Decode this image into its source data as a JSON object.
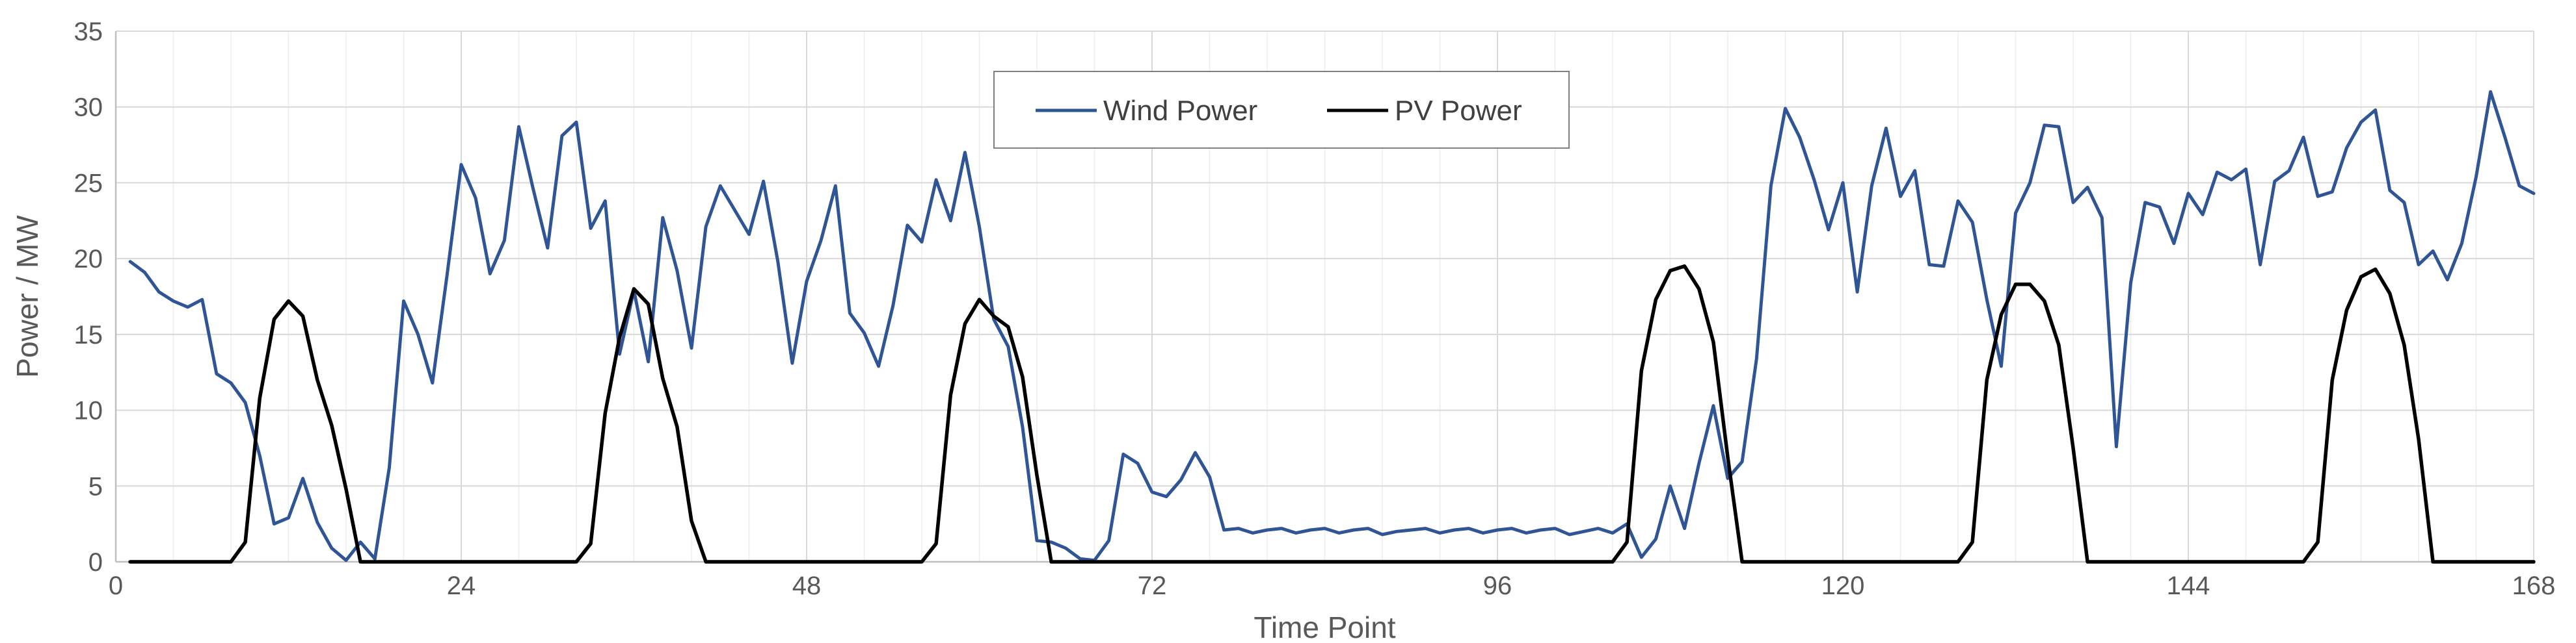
{
  "chart_data": {
    "type": "line",
    "title": "",
    "xlabel": "Time Point",
    "ylabel": "Power / MW",
    "xlim": [
      0,
      168
    ],
    "ylim": [
      0,
      35
    ],
    "x_ticks": [
      0,
      24,
      48,
      72,
      96,
      120,
      144,
      168
    ],
    "y_ticks": [
      0,
      5,
      10,
      15,
      20,
      25,
      30,
      35
    ],
    "grid": true,
    "legend_position": "top-center",
    "series": [
      {
        "name": "Wind Power",
        "color": "#2F5597",
        "x": [
          1,
          2,
          3,
          4,
          5,
          6,
          7,
          8,
          9,
          10,
          11,
          12,
          13,
          14,
          15,
          16,
          17,
          18,
          19,
          20,
          21,
          22,
          23,
          24,
          25,
          26,
          27,
          28,
          29,
          30,
          31,
          32,
          33,
          34,
          35,
          36,
          37,
          38,
          39,
          40,
          41,
          42,
          43,
          44,
          45,
          46,
          47,
          48,
          49,
          50,
          51,
          52,
          53,
          54,
          55,
          56,
          57,
          58,
          59,
          60,
          61,
          62,
          63,
          64,
          65,
          66,
          67,
          68,
          69,
          70,
          71,
          72,
          73,
          74,
          75,
          76,
          77,
          78,
          79,
          80,
          81,
          82,
          83,
          84,
          85,
          86,
          87,
          88,
          89,
          90,
          91,
          92,
          93,
          94,
          95,
          96,
          97,
          98,
          99,
          100,
          101,
          102,
          103,
          104,
          105,
          106,
          107,
          108,
          109,
          110,
          111,
          112,
          113,
          114,
          115,
          116,
          117,
          118,
          119,
          120,
          121,
          122,
          123,
          124,
          125,
          126,
          127,
          128,
          129,
          130,
          131,
          132,
          133,
          134,
          135,
          136,
          137,
          138,
          139,
          140,
          141,
          142,
          143,
          144,
          145,
          146,
          147,
          148,
          149,
          150,
          151,
          152,
          153,
          154,
          155,
          156,
          157,
          158,
          159,
          160,
          161,
          162,
          163,
          164,
          165,
          166,
          167,
          168
        ],
        "values": [
          19.8,
          19.1,
          17.8,
          17.2,
          16.8,
          17.3,
          12.4,
          11.8,
          10.5,
          7.0,
          2.5,
          2.9,
          5.5,
          2.6,
          0.9,
          0.1,
          1.3,
          0.2,
          6.2,
          17.2,
          15.0,
          11.8,
          18.8,
          26.2,
          24.0,
          19.0,
          21.2,
          28.7,
          24.6,
          20.7,
          28.1,
          29.0,
          22.0,
          23.8,
          13.7,
          17.9,
          13.2,
          22.7,
          19.2,
          14.1,
          22.1,
          24.8,
          23.2,
          21.6,
          25.1,
          19.8,
          13.1,
          18.5,
          21.2,
          24.8,
          16.4,
          15.1,
          12.9,
          16.9,
          22.2,
          21.1,
          25.2,
          22.5,
          27.0,
          22.1,
          16.0,
          14.2,
          8.9,
          1.4,
          1.3,
          0.9,
          0.2,
          0.1,
          1.4,
          7.1,
          6.5,
          4.6,
          4.3,
          5.4,
          7.2,
          5.6,
          2.1,
          2.2,
          1.9,
          2.1,
          2.2,
          1.9,
          2.1,
          2.2,
          1.9,
          2.1,
          2.2,
          1.8,
          2.0,
          2.1,
          2.2,
          1.9,
          2.1,
          2.2,
          1.9,
          2.1,
          2.2,
          1.9,
          2.1,
          2.2,
          1.8,
          2.0,
          2.2,
          1.9,
          2.5,
          0.3,
          1.5,
          5.0,
          2.2,
          6.5,
          10.3,
          5.5,
          6.6,
          13.4,
          24.8,
          29.9,
          28.0,
          25.2,
          21.9,
          25.0,
          17.8,
          24.8,
          28.6,
          24.1,
          25.8,
          19.6,
          19.5,
          23.8,
          22.4,
          17.3,
          12.9,
          23.0,
          25.0,
          28.8,
          28.7,
          23.7,
          24.7,
          22.7,
          7.6,
          18.4,
          23.7,
          23.4,
          21.0,
          24.3,
          22.9,
          25.7,
          25.2,
          25.9,
          19.6,
          25.1,
          25.8,
          28.0,
          24.1,
          24.4,
          27.3,
          29.0,
          29.8,
          24.5,
          23.7,
          19.6,
          20.5,
          18.6,
          21.0,
          25.4,
          31.0,
          28.0,
          24.8,
          24.3
        ]
      },
      {
        "name": "PV Power",
        "color": "#000000",
        "x": [
          1,
          2,
          3,
          4,
          5,
          6,
          7,
          8,
          9,
          10,
          11,
          12,
          13,
          14,
          15,
          16,
          17,
          18,
          19,
          20,
          21,
          22,
          23,
          24,
          25,
          26,
          27,
          28,
          29,
          30,
          31,
          32,
          33,
          34,
          35,
          36,
          37,
          38,
          39,
          40,
          41,
          42,
          43,
          44,
          45,
          46,
          47,
          48,
          49,
          50,
          51,
          52,
          53,
          54,
          55,
          56,
          57,
          58,
          59,
          60,
          61,
          62,
          63,
          64,
          65,
          66,
          67,
          68,
          69,
          70,
          71,
          72,
          73,
          74,
          75,
          76,
          77,
          78,
          79,
          80,
          81,
          82,
          83,
          84,
          85,
          86,
          87,
          88,
          89,
          90,
          91,
          92,
          93,
          94,
          95,
          96,
          97,
          98,
          99,
          100,
          101,
          102,
          103,
          104,
          105,
          106,
          107,
          108,
          109,
          110,
          111,
          112,
          113,
          114,
          115,
          116,
          117,
          118,
          119,
          120,
          121,
          122,
          123,
          124,
          125,
          126,
          127,
          128,
          129,
          130,
          131,
          132,
          133,
          134,
          135,
          136,
          137,
          138,
          139,
          140,
          141,
          142,
          143,
          144,
          145,
          146,
          147,
          148,
          149,
          150,
          151,
          152,
          153,
          154,
          155,
          156,
          157,
          158,
          159,
          160,
          161,
          162,
          163,
          164,
          165,
          166,
          167,
          168
        ],
        "values": [
          0,
          0,
          0,
          0,
          0,
          0,
          0,
          0,
          1.3,
          10.8,
          16.0,
          17.2,
          16.2,
          12.0,
          9.0,
          4.8,
          0,
          0,
          0,
          0,
          0,
          0,
          0,
          0,
          0,
          0,
          0,
          0,
          0,
          0,
          0,
          0,
          1.2,
          9.8,
          14.8,
          18.0,
          17.0,
          12.1,
          8.9,
          2.7,
          0,
          0,
          0,
          0,
          0,
          0,
          0,
          0,
          0,
          0,
          0,
          0,
          0,
          0,
          0,
          0,
          1.2,
          11.0,
          15.7,
          17.3,
          16.2,
          15.5,
          12.2,
          5.7,
          0,
          0,
          0,
          0,
          0,
          0,
          0,
          0,
          0,
          0,
          0,
          0,
          0,
          0,
          0,
          0,
          0,
          0,
          0,
          0,
          0,
          0,
          0,
          0,
          0,
          0,
          0,
          0,
          0,
          0,
          0,
          0,
          0,
          0,
          0,
          0,
          0,
          0,
          0,
          0,
          1.3,
          12.6,
          17.3,
          19.2,
          19.5,
          18.0,
          14.5,
          6.9,
          0,
          0,
          0,
          0,
          0,
          0,
          0,
          0,
          0,
          0,
          0,
          0,
          0,
          0,
          0,
          0,
          1.3,
          12.0,
          16.3,
          18.3,
          18.3,
          17.2,
          14.3,
          7.5,
          0,
          0,
          0,
          0,
          0,
          0,
          0,
          0,
          0,
          0,
          0,
          0,
          0,
          0,
          0,
          0,
          1.3,
          12.0,
          16.6,
          18.8,
          19.3,
          17.7,
          14.3,
          8.1,
          0,
          0,
          0,
          0,
          0,
          0,
          0,
          0
        ]
      }
    ]
  }
}
